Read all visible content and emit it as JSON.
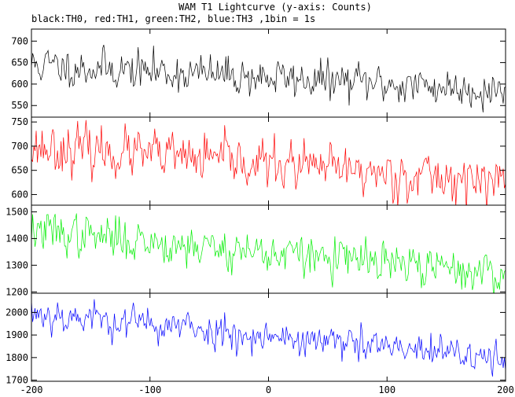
{
  "chart_data": {
    "type": "line",
    "title": "WAM T1 Lightcurve (y-axis: Counts)",
    "subtitle": "black:TH0, red:TH1, green:TH2, blue:TH3 ,1bin = 1s",
    "xlim": [
      -200,
      200
    ],
    "x_ticks": [
      -200,
      -100,
      0,
      100,
      200
    ],
    "bin_seconds": 1,
    "grid": false,
    "panels": [
      {
        "name": "TH0",
        "color": "#000000",
        "ylim": [
          523,
          728
        ],
        "y_ticks": [
          550,
          600,
          650,
          700
        ],
        "trend": {
          "x": [
            -200,
            200
          ],
          "y": [
            645,
            585
          ]
        },
        "noise_std": 22,
        "seed": 11
      },
      {
        "name": "TH1",
        "color": "#ff0000",
        "ylim": [
          578,
          760
        ],
        "y_ticks": [
          600,
          650,
          700,
          750
        ],
        "trend": {
          "x": [
            -200,
            200
          ],
          "y": [
            700,
            625
          ]
        },
        "noise_std": 24,
        "seed": 23
      },
      {
        "name": "TH2",
        "color": "#00ee00",
        "ylim": [
          1195,
          1525
        ],
        "y_ticks": [
          1200,
          1300,
          1400,
          1500
        ],
        "trend": {
          "x": [
            -200,
            200
          ],
          "y": [
            1430,
            1265
          ]
        },
        "noise_std": 38,
        "seed": 37
      },
      {
        "name": "TH3",
        "color": "#0000ff",
        "ylim": [
          1695,
          2085
        ],
        "y_ticks": [
          1700,
          1800,
          1900,
          2000
        ],
        "trend": {
          "x": [
            -200,
            200
          ],
          "y": [
            2000,
            1790
          ]
        },
        "noise_std": 38,
        "seed": 53
      }
    ]
  }
}
